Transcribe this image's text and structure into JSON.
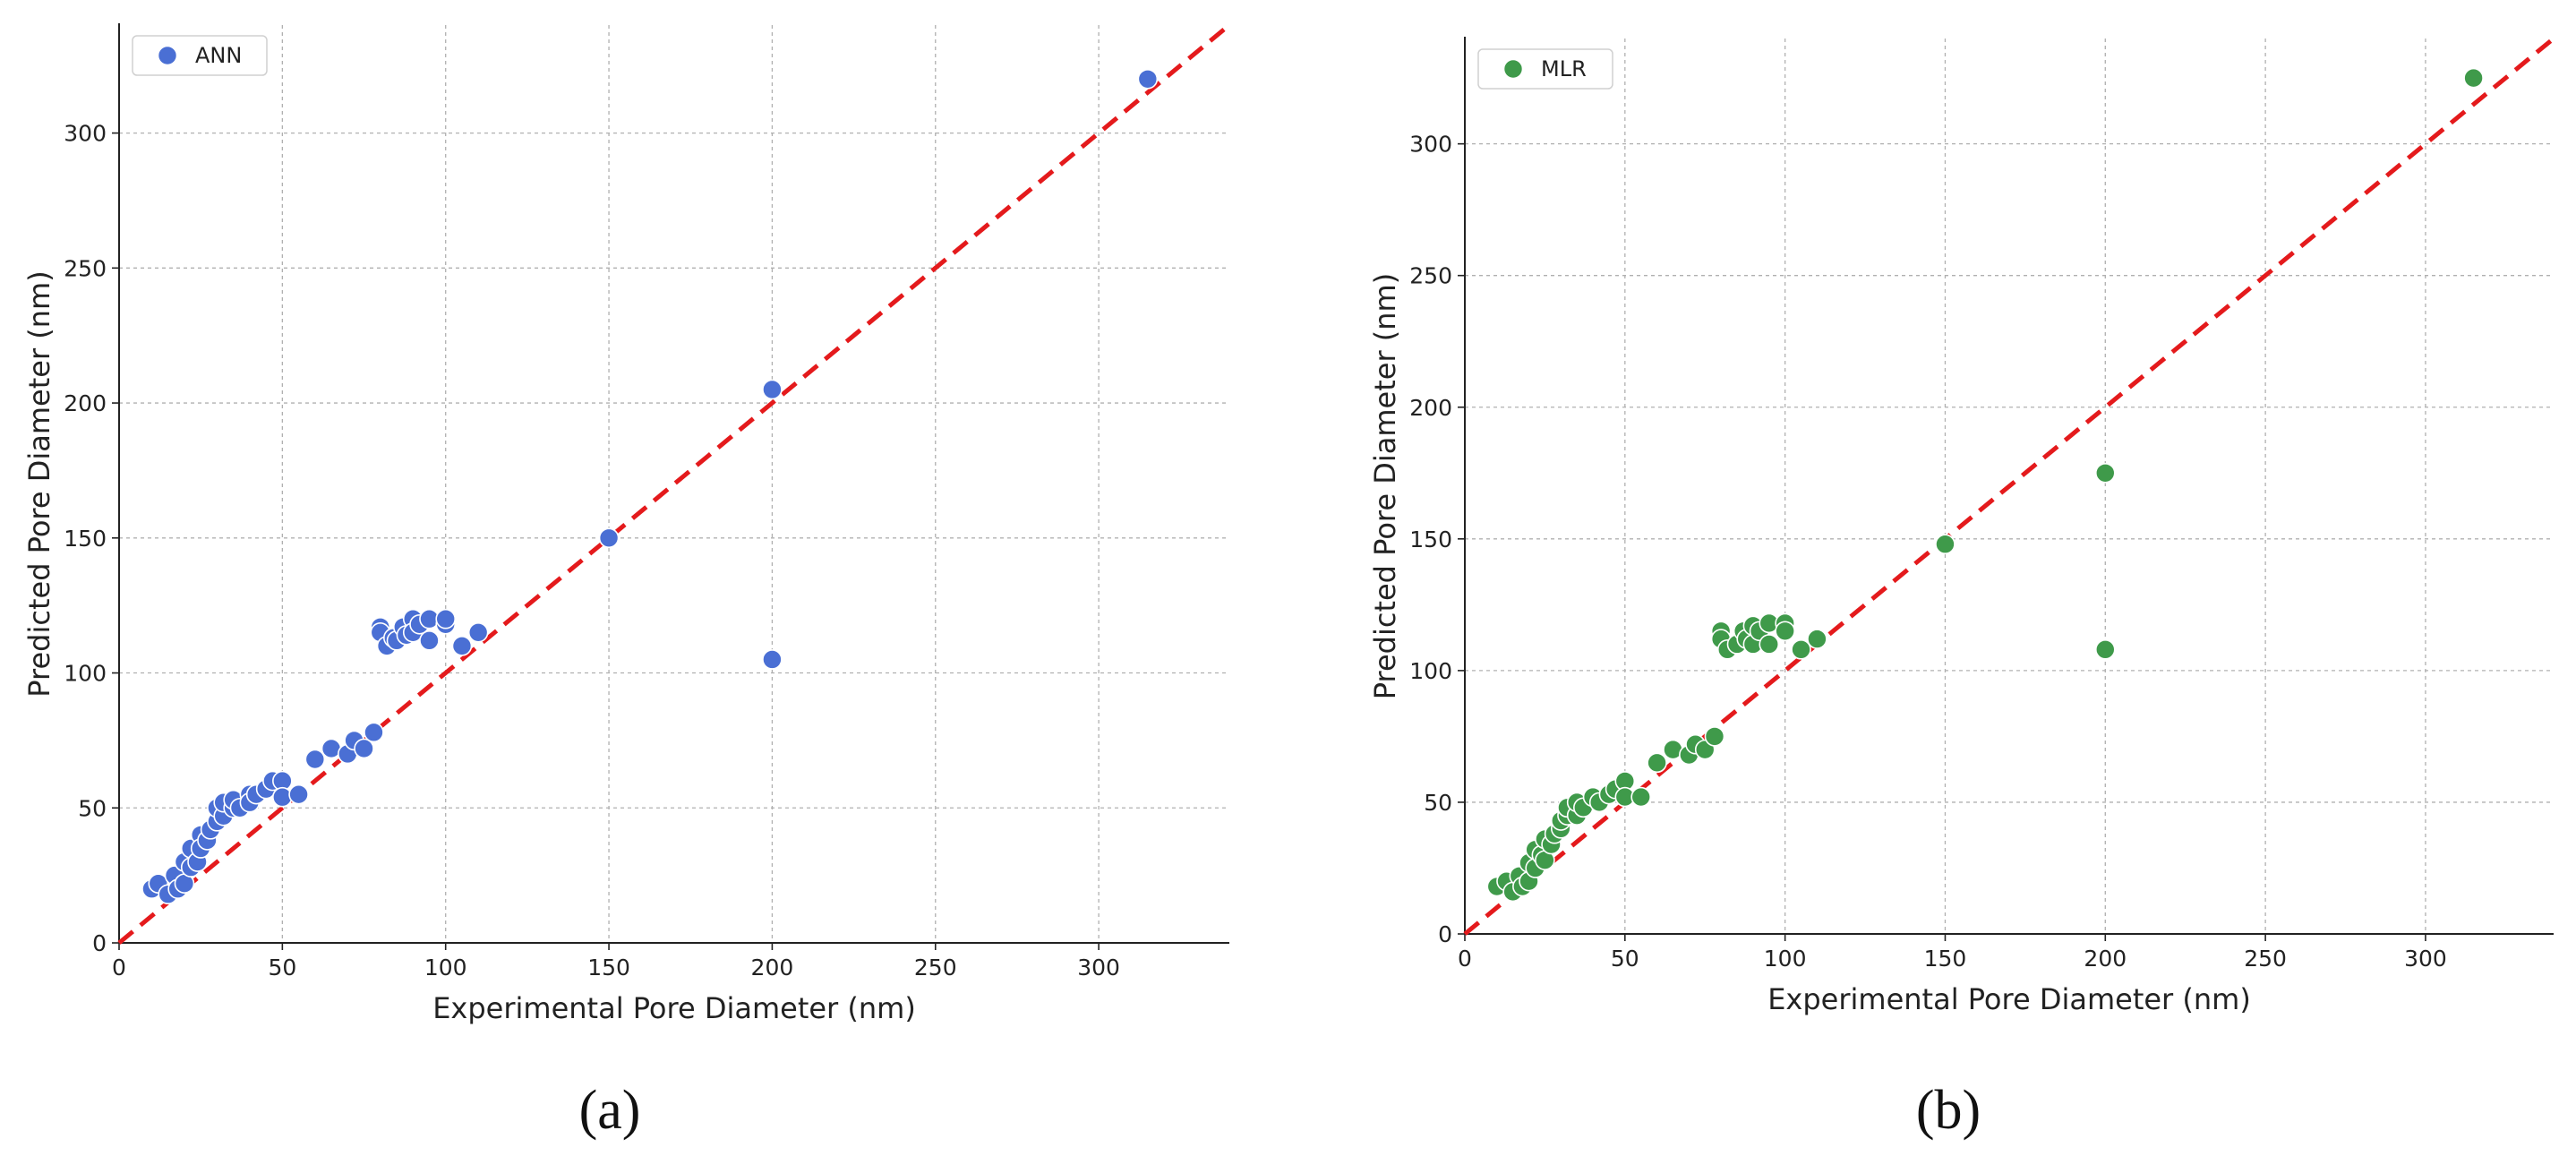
{
  "panels": {
    "a": "(a)",
    "b": "(b)"
  },
  "chart_data": [
    {
      "type": "scatter",
      "xlabel": "Experimental Pore Diameter (nm)",
      "ylabel": "Predicted Pore Diameter (nm)",
      "xlim": [
        0,
        340
      ],
      "ylim": [
        0,
        340
      ],
      "xticks": [
        0,
        50,
        100,
        150,
        200,
        250,
        300
      ],
      "yticks": [
        0,
        50,
        100,
        150,
        200,
        250,
        300
      ],
      "grid": true,
      "legend": "top-left",
      "reference_line": "y = x",
      "colors": {
        "marker": "#4a6fd4",
        "line": "#e41a1c"
      },
      "series": [
        {
          "name": "ANN",
          "x": [
            10,
            12,
            15,
            17,
            18,
            20,
            20,
            22,
            22,
            24,
            25,
            25,
            27,
            28,
            30,
            30,
            32,
            32,
            35,
            35,
            37,
            40,
            40,
            42,
            45,
            47,
            50,
            50,
            55,
            60,
            65,
            70,
            72,
            75,
            78,
            80,
            80,
            82,
            84,
            85,
            87,
            88,
            90,
            90,
            92,
            95,
            95,
            100,
            100,
            105,
            110,
            150,
            200,
            200,
            315
          ],
          "y": [
            20,
            22,
            18,
            25,
            20,
            30,
            22,
            35,
            28,
            30,
            40,
            35,
            38,
            42,
            45,
            50,
            47,
            52,
            50,
            53,
            50,
            55,
            52,
            55,
            57,
            60,
            60,
            54,
            55,
            68,
            72,
            70,
            75,
            72,
            78,
            117,
            115,
            110,
            113,
            112,
            117,
            114,
            120,
            115,
            118,
            112,
            120,
            118,
            120,
            110,
            115,
            150,
            205,
            105,
            320
          ]
        }
      ]
    },
    {
      "type": "scatter",
      "xlabel": "Experimental Pore Diameter (nm)",
      "ylabel": "Predicted Pore Diameter (nm)",
      "xlim": [
        0,
        340
      ],
      "ylim": [
        0,
        340
      ],
      "xticks": [
        0,
        50,
        100,
        150,
        200,
        250,
        300
      ],
      "yticks": [
        0,
        50,
        100,
        150,
        200,
        250,
        300
      ],
      "grid": true,
      "legend": "top-left",
      "reference_line": "y = x",
      "colors": {
        "marker": "#3f9a4a",
        "line": "#e41a1c"
      },
      "series": [
        {
          "name": "MLR",
          "x": [
            10,
            13,
            15,
            17,
            18,
            20,
            20,
            22,
            22,
            24,
            25,
            25,
            27,
            28,
            30,
            30,
            32,
            32,
            35,
            35,
            37,
            40,
            42,
            45,
            47,
            50,
            50,
            55,
            60,
            65,
            70,
            72,
            75,
            78,
            80,
            80,
            82,
            85,
            87,
            88,
            90,
            90,
            92,
            95,
            95,
            100,
            100,
            105,
            110,
            150,
            200,
            200,
            315
          ],
          "y": [
            18,
            20,
            16,
            22,
            18,
            27,
            20,
            32,
            25,
            30,
            36,
            28,
            34,
            38,
            40,
            43,
            45,
            48,
            45,
            50,
            48,
            52,
            50,
            53,
            55,
            58,
            52,
            52,
            65,
            70,
            68,
            72,
            70,
            75,
            115,
            112,
            108,
            110,
            115,
            112,
            117,
            110,
            115,
            118,
            110,
            118,
            115,
            108,
            112,
            148,
            175,
            108,
            325
          ]
        }
      ]
    }
  ]
}
